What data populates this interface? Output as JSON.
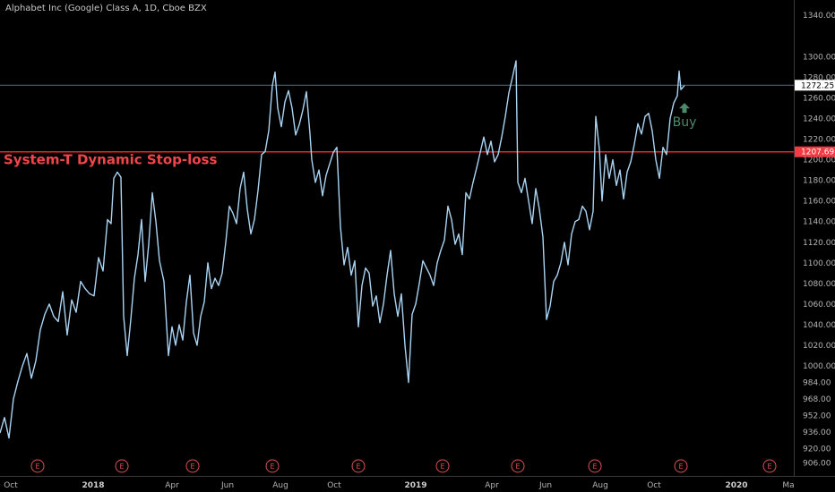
{
  "title": "Alphabet Inc (Google) Class A, 1D, Cboe BZX",
  "chart_data": {
    "type": "line",
    "ylim": [
      902,
      1348
    ],
    "y_ticks": [
      1340,
      1300,
      1280,
      1260,
      1240,
      1220,
      1200,
      1180,
      1160,
      1140,
      1120,
      1100,
      1080,
      1060,
      1040,
      1020,
      1000,
      984,
      968,
      952,
      936,
      920,
      906
    ],
    "x_ticks": [
      {
        "label": "Oct",
        "day": 12,
        "bold": false
      },
      {
        "label": "2018",
        "day": 104,
        "bold": true
      },
      {
        "label": "Apr",
        "day": 192,
        "bold": false
      },
      {
        "label": "Jun",
        "day": 254,
        "bold": false
      },
      {
        "label": "Aug",
        "day": 313,
        "bold": false
      },
      {
        "label": "Oct",
        "day": 373,
        "bold": false
      },
      {
        "label": "2019",
        "day": 464,
        "bold": true
      },
      {
        "label": "Apr",
        "day": 549,
        "bold": false
      },
      {
        "label": "Jun",
        "day": 609,
        "bold": false
      },
      {
        "label": "Aug",
        "day": 670,
        "bold": false
      },
      {
        "label": "Oct",
        "day": 730,
        "bold": false
      },
      {
        "label": "2020",
        "day": 822,
        "bold": true
      },
      {
        "label": "Ma",
        "day": 880,
        "bold": false
      }
    ],
    "earnings_markers": [
      {
        "label": "E",
        "day": 42
      },
      {
        "label": "E",
        "day": 136
      },
      {
        "label": "E",
        "day": 215
      },
      {
        "label": "E",
        "day": 304
      },
      {
        "label": "E",
        "day": 400
      },
      {
        "label": "E",
        "day": 494
      },
      {
        "label": "E",
        "day": 578
      },
      {
        "label": "E",
        "day": 664
      },
      {
        "label": "E",
        "day": 760
      },
      {
        "label": "E",
        "day": 859
      }
    ],
    "series": [
      {
        "color": "#a9d4f3",
        "points": [
          [
            0,
            935
          ],
          [
            5,
            950
          ],
          [
            10,
            930
          ],
          [
            15,
            968
          ],
          [
            20,
            985
          ],
          [
            25,
            1000
          ],
          [
            30,
            1012
          ],
          [
            35,
            988
          ],
          [
            40,
            1005
          ],
          [
            45,
            1035
          ],
          [
            50,
            1050
          ],
          [
            55,
            1060
          ],
          [
            60,
            1048
          ],
          [
            65,
            1043
          ],
          [
            70,
            1072
          ],
          [
            75,
            1030
          ],
          [
            80,
            1064
          ],
          [
            85,
            1052
          ],
          [
            90,
            1082
          ],
          [
            95,
            1075
          ],
          [
            100,
            1070
          ],
          [
            105,
            1068
          ],
          [
            110,
            1105
          ],
          [
            115,
            1092
          ],
          [
            120,
            1142
          ],
          [
            124,
            1138
          ],
          [
            127,
            1182
          ],
          [
            131,
            1188
          ],
          [
            135,
            1183
          ],
          [
            138,
            1048
          ],
          [
            142,
            1010
          ],
          [
            146,
            1045
          ],
          [
            150,
            1085
          ],
          [
            154,
            1108
          ],
          [
            158,
            1142
          ],
          [
            162,
            1082
          ],
          [
            166,
            1118
          ],
          [
            170,
            1168
          ],
          [
            174,
            1140
          ],
          [
            178,
            1102
          ],
          [
            183,
            1082
          ],
          [
            188,
            1010
          ],
          [
            192,
            1038
          ],
          [
            196,
            1020
          ],
          [
            200,
            1040
          ],
          [
            204,
            1025
          ],
          [
            208,
            1062
          ],
          [
            212,
            1088
          ],
          [
            216,
            1032
          ],
          [
            220,
            1020
          ],
          [
            224,
            1048
          ],
          [
            228,
            1062
          ],
          [
            232,
            1100
          ],
          [
            236,
            1075
          ],
          [
            240,
            1085
          ],
          [
            244,
            1078
          ],
          [
            248,
            1090
          ],
          [
            252,
            1120
          ],
          [
            256,
            1155
          ],
          [
            260,
            1148
          ],
          [
            264,
            1138
          ],
          [
            268,
            1172
          ],
          [
            272,
            1188
          ],
          [
            276,
            1152
          ],
          [
            280,
            1128
          ],
          [
            284,
            1142
          ],
          [
            288,
            1170
          ],
          [
            292,
            1205
          ],
          [
            296,
            1208
          ],
          [
            300,
            1228
          ],
          [
            304,
            1272
          ],
          [
            307,
            1285
          ],
          [
            310,
            1250
          ],
          [
            314,
            1232
          ],
          [
            318,
            1256
          ],
          [
            322,
            1267
          ],
          [
            326,
            1250
          ],
          [
            330,
            1224
          ],
          [
            334,
            1234
          ],
          [
            338,
            1248
          ],
          [
            342,
            1266
          ],
          [
            346,
            1225
          ],
          [
            348,
            1200
          ],
          [
            352,
            1178
          ],
          [
            356,
            1190
          ],
          [
            360,
            1165
          ],
          [
            364,
            1185
          ],
          [
            368,
            1196
          ],
          [
            372,
            1207
          ],
          [
            376,
            1212
          ],
          [
            380,
            1135
          ],
          [
            384,
            1098
          ],
          [
            388,
            1115
          ],
          [
            392,
            1088
          ],
          [
            396,
            1102
          ],
          [
            400,
            1038
          ],
          [
            404,
            1078
          ],
          [
            408,
            1095
          ],
          [
            412,
            1090
          ],
          [
            416,
            1058
          ],
          [
            420,
            1068
          ],
          [
            424,
            1042
          ],
          [
            428,
            1060
          ],
          [
            432,
            1088
          ],
          [
            436,
            1112
          ],
          [
            440,
            1070
          ],
          [
            444,
            1048
          ],
          [
            448,
            1070
          ],
          [
            452,
            1020
          ],
          [
            456,
            984
          ],
          [
            460,
            1050
          ],
          [
            464,
            1060
          ],
          [
            468,
            1080
          ],
          [
            472,
            1102
          ],
          [
            476,
            1095
          ],
          [
            480,
            1088
          ],
          [
            484,
            1078
          ],
          [
            488,
            1100
          ],
          [
            492,
            1112
          ],
          [
            496,
            1122
          ],
          [
            500,
            1155
          ],
          [
            504,
            1142
          ],
          [
            508,
            1118
          ],
          [
            512,
            1128
          ],
          [
            516,
            1108
          ],
          [
            520,
            1168
          ],
          [
            524,
            1162
          ],
          [
            528,
            1178
          ],
          [
            532,
            1192
          ],
          [
            536,
            1207
          ],
          [
            540,
            1222
          ],
          [
            544,
            1205
          ],
          [
            548,
            1218
          ],
          [
            552,
            1198
          ],
          [
            556,
            1205
          ],
          [
            560,
            1222
          ],
          [
            564,
            1242
          ],
          [
            568,
            1265
          ],
          [
            572,
            1280
          ],
          [
            576,
            1296
          ],
          [
            578,
            1178
          ],
          [
            582,
            1168
          ],
          [
            586,
            1182
          ],
          [
            590,
            1160
          ],
          [
            594,
            1138
          ],
          [
            598,
            1172
          ],
          [
            602,
            1152
          ],
          [
            606,
            1125
          ],
          [
            610,
            1045
          ],
          [
            614,
            1058
          ],
          [
            618,
            1082
          ],
          [
            622,
            1088
          ],
          [
            626,
            1100
          ],
          [
            630,
            1120
          ],
          [
            634,
            1098
          ],
          [
            638,
            1128
          ],
          [
            642,
            1140
          ],
          [
            646,
            1142
          ],
          [
            650,
            1155
          ],
          [
            654,
            1150
          ],
          [
            658,
            1132
          ],
          [
            662,
            1150
          ],
          [
            665,
            1242
          ],
          [
            669,
            1210
          ],
          [
            672,
            1160
          ],
          [
            676,
            1205
          ],
          [
            680,
            1182
          ],
          [
            684,
            1200
          ],
          [
            688,
            1175
          ],
          [
            692,
            1190
          ],
          [
            696,
            1162
          ],
          [
            700,
            1188
          ],
          [
            704,
            1198
          ],
          [
            708,
            1215
          ],
          [
            712,
            1235
          ],
          [
            716,
            1225
          ],
          [
            720,
            1242
          ],
          [
            724,
            1245
          ],
          [
            728,
            1228
          ],
          [
            732,
            1200
          ],
          [
            736,
            1182
          ],
          [
            740,
            1212
          ],
          [
            744,
            1205
          ],
          [
            748,
            1240
          ],
          [
            752,
            1255
          ],
          [
            756,
            1262
          ],
          [
            758,
            1286
          ],
          [
            760,
            1268
          ],
          [
            764,
            1272
          ]
        ]
      }
    ],
    "hlines": [
      {
        "value": 1272.25,
        "color": "#5a6a78",
        "label": "1272.25",
        "tag_bg": "#ffffff",
        "tag_fg": "#000000"
      },
      {
        "value": 1207.69,
        "color": "#e8262b",
        "label": "1207.69",
        "tag_bg": "#f23b43",
        "tag_fg": "#ffffff"
      }
    ],
    "annotations": {
      "stop_loss_text": "System-T Dynamic Stop-loss",
      "buy_text": "Buy",
      "buy_day": 764
    }
  },
  "colors": {
    "background": "#000000",
    "line": "#a9d4f3",
    "axis_border": "#3a3a3a",
    "stop_line": "#e8262b",
    "buy": "#4c8a6a",
    "earnings": "#e05050"
  }
}
